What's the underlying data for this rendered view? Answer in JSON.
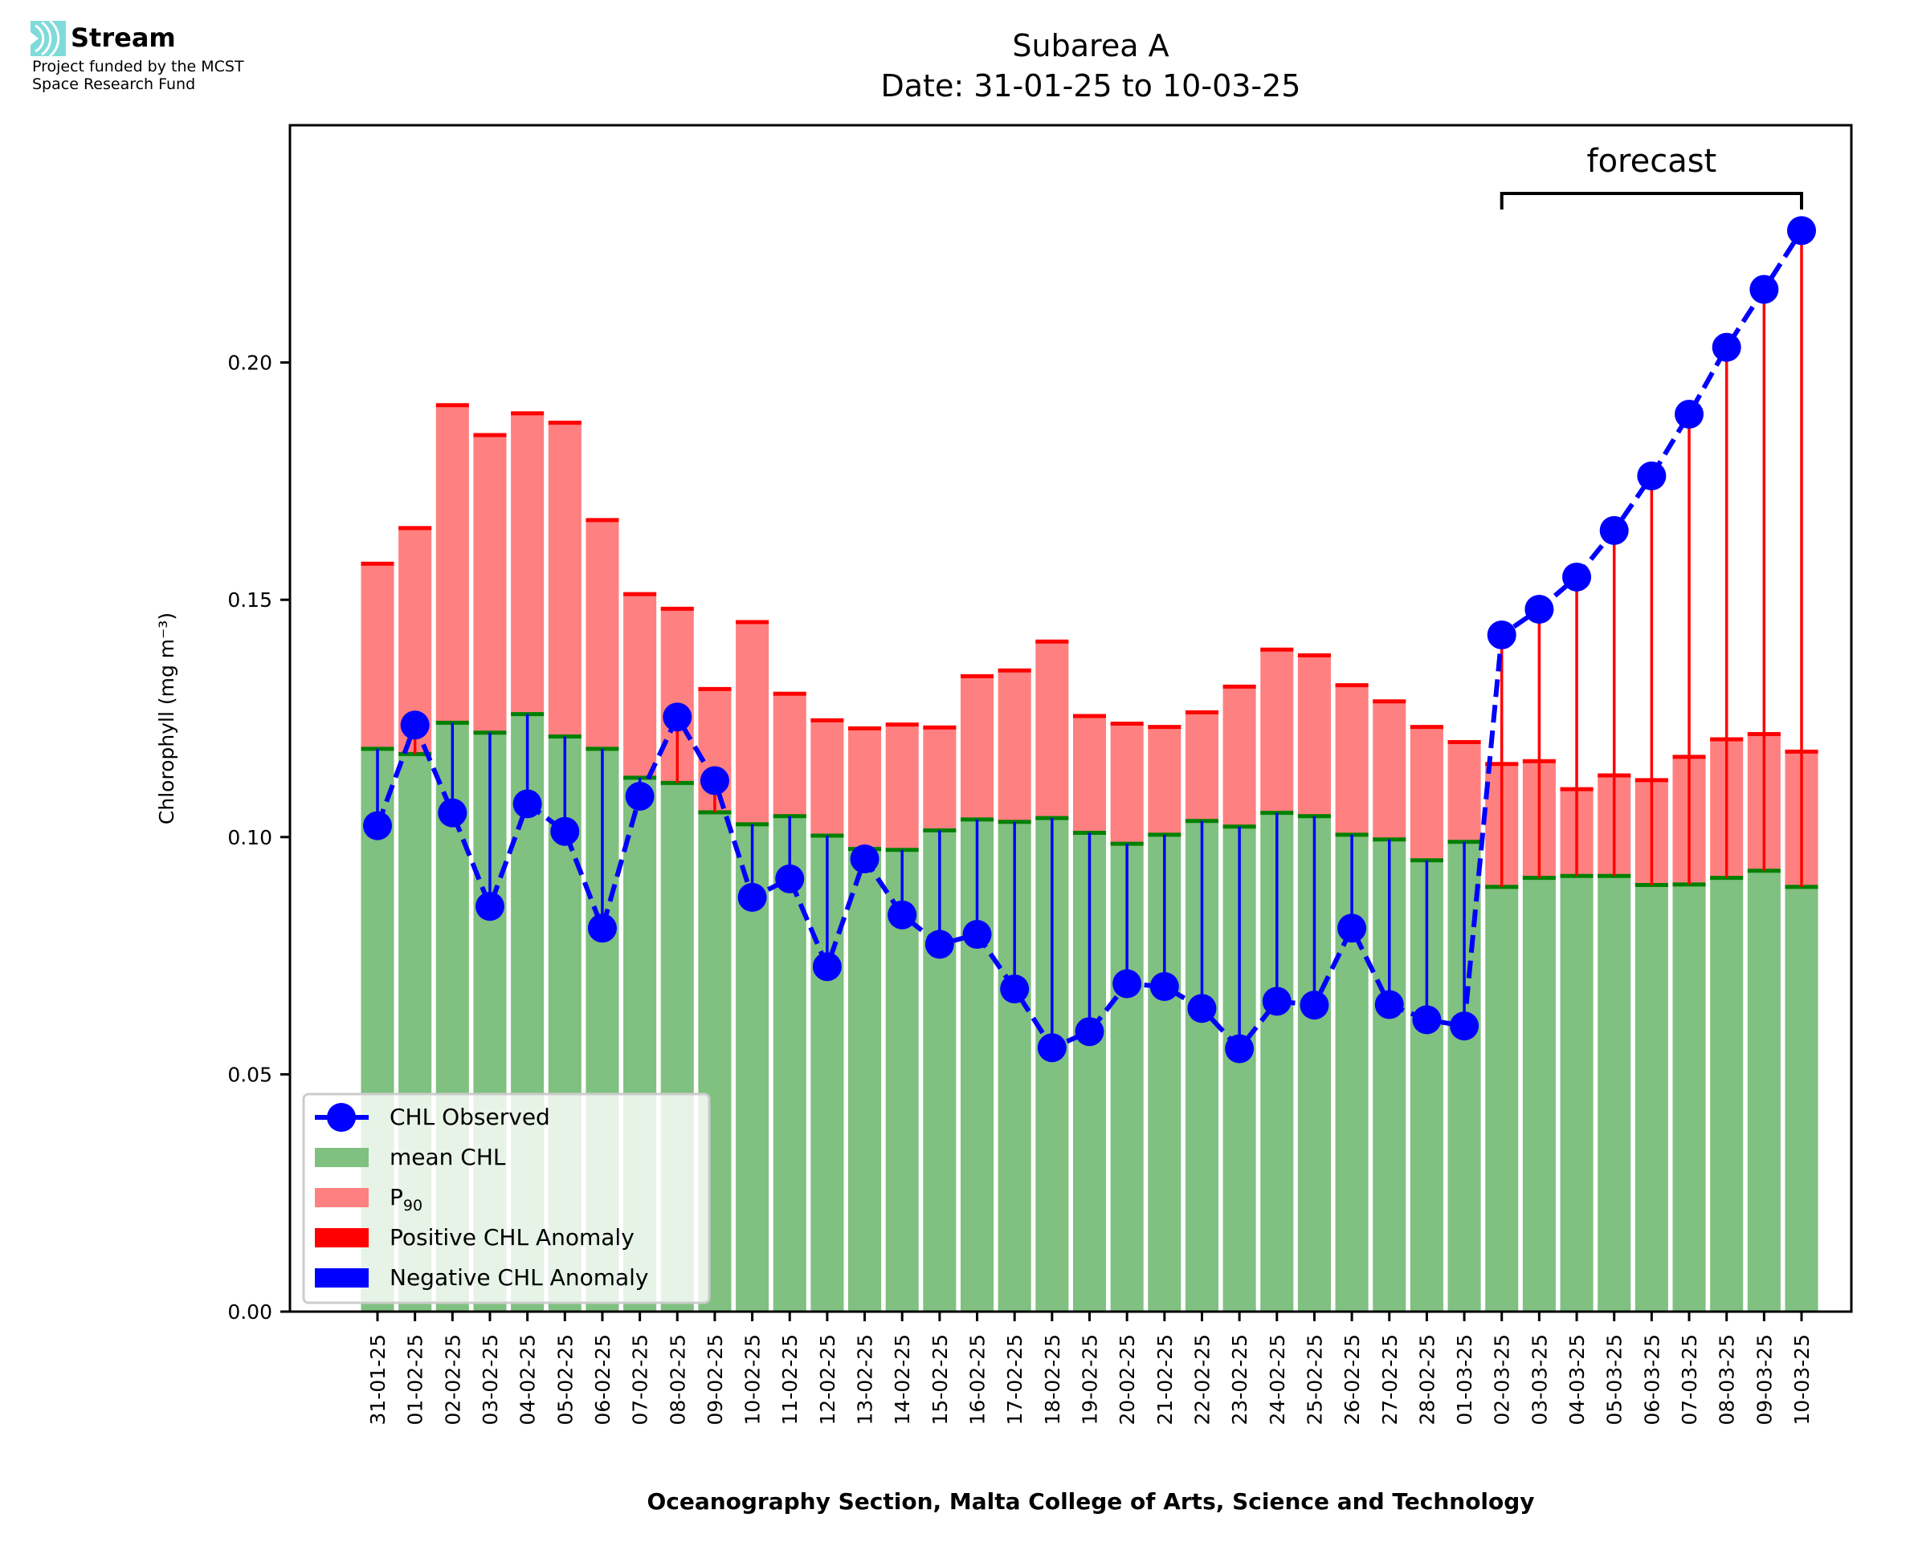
{
  "branding": {
    "logo_name": "Stream",
    "logo_icon": "signal-arcs-icon",
    "logo_color": "#7fdbd9",
    "funding_line1": "Project funded by the MCST",
    "funding_line2": "Space Research Fund"
  },
  "chart_data": {
    "type": "bar",
    "title_line1": "Subarea A",
    "title_line2": "Date: 31-01-25 to 10-03-25",
    "xlabel": "Oceanography Section, Malta College of Arts, Science and Technology",
    "ylabel": "Chlorophyll (mg m⁻³)",
    "ylim": [
      0,
      0.25
    ],
    "yticks": [
      0.0,
      0.05,
      0.1,
      0.15,
      0.2
    ],
    "ytick_labels": [
      "0.00",
      "0.05",
      "0.10",
      "0.15",
      "0.20"
    ],
    "grid": false,
    "legend_position": "lower-left",
    "annotation": {
      "text": "forecast",
      "from": "02-03-25",
      "to": "10-03-25"
    },
    "colors": {
      "mean": "#80c080",
      "mean_edge": "#008000",
      "p90": "#ff8080",
      "p90_edge": "#ff0000",
      "observed": "#0000ff",
      "positive_anomaly": "#ff0000",
      "negative_anomaly": "#0000ff"
    },
    "legend": [
      {
        "label": "CHL Observed",
        "kind": "line-marker",
        "color": "#0000ff"
      },
      {
        "label": "mean CHL",
        "kind": "patch",
        "color": "#80c080"
      },
      {
        "label": "P",
        "sub": "90",
        "kind": "patch",
        "color": "#ff8080"
      },
      {
        "label": "Positive CHL Anomaly",
        "kind": "patch",
        "color": "#ff0000"
      },
      {
        "label": "Negative CHL Anomaly",
        "kind": "patch",
        "color": "#0000ff"
      }
    ],
    "categories": [
      "31-01-25",
      "01-02-25",
      "02-02-25",
      "03-02-25",
      "04-02-25",
      "05-02-25",
      "06-02-25",
      "07-02-25",
      "08-02-25",
      "09-02-25",
      "10-02-25",
      "11-02-25",
      "12-02-25",
      "13-02-25",
      "14-02-25",
      "15-02-25",
      "16-02-25",
      "17-02-25",
      "18-02-25",
      "19-02-25",
      "20-02-25",
      "21-02-25",
      "22-02-25",
      "23-02-25",
      "24-02-25",
      "25-02-25",
      "26-02-25",
      "27-02-25",
      "28-02-25",
      "01-03-25",
      "02-03-25",
      "03-03-25",
      "04-03-25",
      "05-03-25",
      "06-03-25",
      "07-03-25",
      "08-03-25",
      "09-03-25",
      "10-03-25"
    ],
    "series": [
      {
        "name": "mean CHL",
        "values": [
          0.1186,
          0.1175,
          0.1241,
          0.122,
          0.1259,
          0.1212,
          0.1186,
          0.1125,
          0.1114,
          0.1052,
          0.1027,
          0.1044,
          0.1003,
          0.0975,
          0.0973,
          0.1014,
          0.1037,
          0.1032,
          0.104,
          0.1009,
          0.0986,
          0.1005,
          0.1034,
          0.1022,
          0.1051,
          0.1044,
          0.1005,
          0.0995,
          0.0951,
          0.099,
          0.0895,
          0.0914,
          0.0918,
          0.0918,
          0.0899,
          0.09,
          0.0914,
          0.0929,
          0.0895
        ]
      },
      {
        "name": "P90",
        "values": [
          0.1576,
          0.1651,
          0.191,
          0.1847,
          0.1893,
          0.1873,
          0.1668,
          0.1512,
          0.1481,
          0.1312,
          0.1453,
          0.1302,
          0.1246,
          0.1229,
          0.1237,
          0.1231,
          0.1339,
          0.1351,
          0.1412,
          0.1255,
          0.1239,
          0.1232,
          0.1263,
          0.1317,
          0.1395,
          0.1383,
          0.132,
          0.1286,
          0.1232,
          0.12,
          0.1154,
          0.116,
          0.1101,
          0.113,
          0.112,
          0.1169,
          0.1206,
          0.1217,
          0.118
        ]
      },
      {
        "name": "CHL Observed",
        "values": [
          0.1024,
          0.1236,
          0.1051,
          0.0854,
          0.107,
          0.1012,
          0.0808,
          0.1086,
          0.1253,
          0.1119,
          0.0873,
          0.0912,
          0.0727,
          0.0954,
          0.0836,
          0.0774,
          0.0795,
          0.068,
          0.0556,
          0.059,
          0.0691,
          0.0685,
          0.0639,
          0.0554,
          0.0654,
          0.0646,
          0.0808,
          0.0647,
          0.0615,
          0.0602,
          0.1426,
          0.148,
          0.1548,
          0.1646,
          0.1761,
          0.1891,
          0.2032,
          0.2154,
          0.2278
        ]
      }
    ]
  }
}
